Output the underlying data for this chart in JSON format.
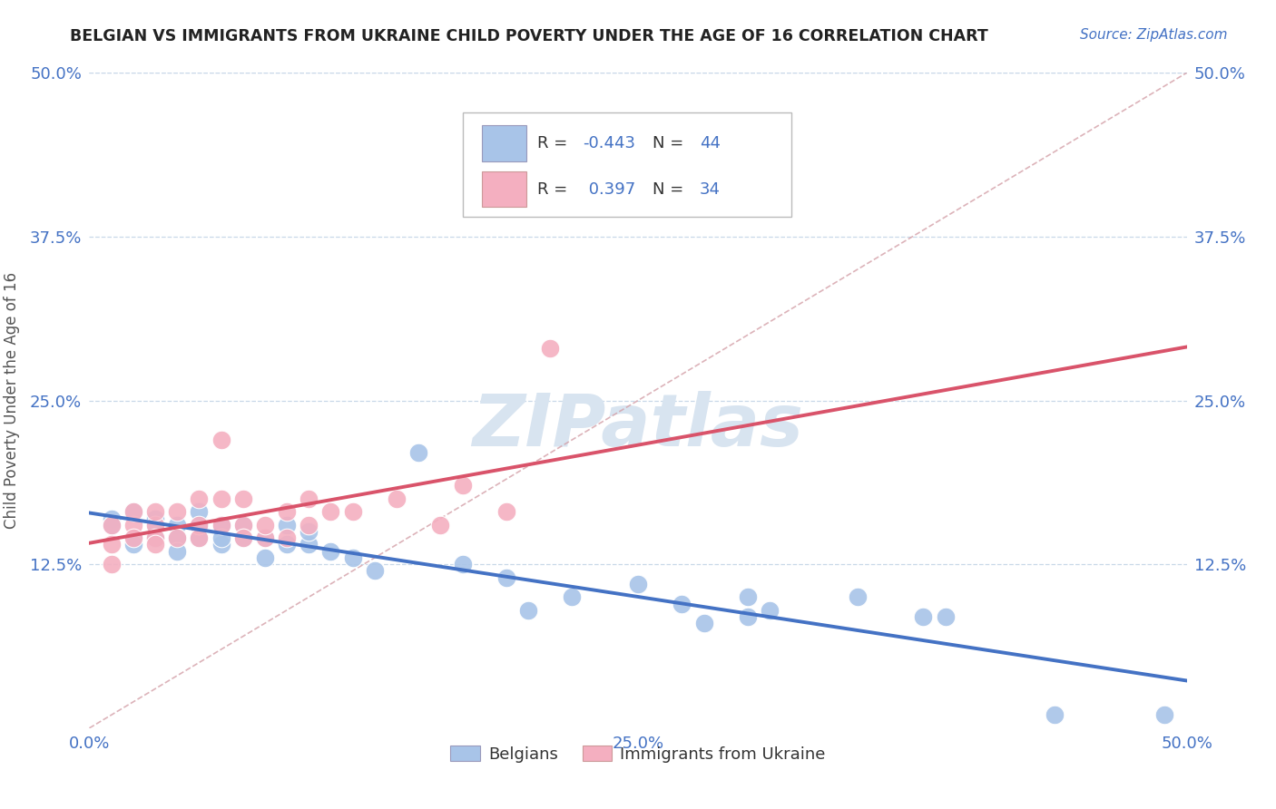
{
  "title": "BELGIAN VS IMMIGRANTS FROM UKRAINE CHILD POVERTY UNDER THE AGE OF 16 CORRELATION CHART",
  "source": "Source: ZipAtlas.com",
  "ylabel": "Child Poverty Under the Age of 16",
  "xlim": [
    0.0,
    0.5
  ],
  "ylim": [
    0.0,
    0.5
  ],
  "xtick_positions": [
    0.0,
    0.125,
    0.25,
    0.375,
    0.5
  ],
  "xtick_labels": [
    "0.0%",
    "",
    "25.0%",
    "",
    "50.0%"
  ],
  "ytick_positions": [
    0.0,
    0.125,
    0.25,
    0.375,
    0.5
  ],
  "ytick_labels": [
    "",
    "12.5%",
    "25.0%",
    "37.5%",
    "50.0%"
  ],
  "belgian_R": -0.443,
  "belgian_N": 44,
  "ukraine_R": 0.397,
  "ukraine_N": 34,
  "belgian_color": "#a8c4e8",
  "ukraine_color": "#f4afc0",
  "belgian_line_color": "#4472c4",
  "ukraine_line_color": "#d9536a",
  "legend_blue_label": "Belgians",
  "legend_pink_label": "Immigrants from Ukraine",
  "belgian_x": [
    0.01,
    0.01,
    0.02,
    0.02,
    0.02,
    0.03,
    0.03,
    0.03,
    0.04,
    0.04,
    0.04,
    0.05,
    0.05,
    0.05,
    0.06,
    0.06,
    0.06,
    0.07,
    0.07,
    0.08,
    0.08,
    0.09,
    0.09,
    0.1,
    0.1,
    0.11,
    0.12,
    0.13,
    0.15,
    0.17,
    0.19,
    0.2,
    0.22,
    0.25,
    0.27,
    0.28,
    0.3,
    0.3,
    0.31,
    0.35,
    0.38,
    0.39,
    0.44,
    0.49
  ],
  "belgian_y": [
    0.16,
    0.155,
    0.165,
    0.145,
    0.14,
    0.145,
    0.16,
    0.155,
    0.155,
    0.145,
    0.135,
    0.145,
    0.155,
    0.165,
    0.155,
    0.14,
    0.145,
    0.155,
    0.145,
    0.13,
    0.145,
    0.155,
    0.14,
    0.14,
    0.15,
    0.135,
    0.13,
    0.12,
    0.21,
    0.125,
    0.115,
    0.09,
    0.1,
    0.11,
    0.095,
    0.08,
    0.1,
    0.085,
    0.09,
    0.1,
    0.085,
    0.085,
    0.01,
    0.01
  ],
  "ukraine_x": [
    0.01,
    0.01,
    0.01,
    0.02,
    0.02,
    0.02,
    0.03,
    0.03,
    0.03,
    0.03,
    0.04,
    0.04,
    0.05,
    0.05,
    0.05,
    0.06,
    0.06,
    0.06,
    0.07,
    0.07,
    0.07,
    0.08,
    0.08,
    0.09,
    0.09,
    0.1,
    0.1,
    0.11,
    0.12,
    0.14,
    0.16,
    0.17,
    0.19,
    0.21
  ],
  "ukraine_y": [
    0.155,
    0.14,
    0.125,
    0.155,
    0.165,
    0.145,
    0.155,
    0.145,
    0.165,
    0.14,
    0.165,
    0.145,
    0.155,
    0.175,
    0.145,
    0.22,
    0.175,
    0.155,
    0.155,
    0.145,
    0.175,
    0.145,
    0.155,
    0.145,
    0.165,
    0.155,
    0.175,
    0.165,
    0.165,
    0.175,
    0.155,
    0.185,
    0.165,
    0.29
  ],
  "title_color": "#222222",
  "source_color": "#4472c4",
  "axis_label_color": "#555555",
  "tick_color": "#4472c4",
  "watermark_color": "#d8e4f0",
  "grid_color": "#c8d8e8",
  "diag_color": "#d4a0a8"
}
